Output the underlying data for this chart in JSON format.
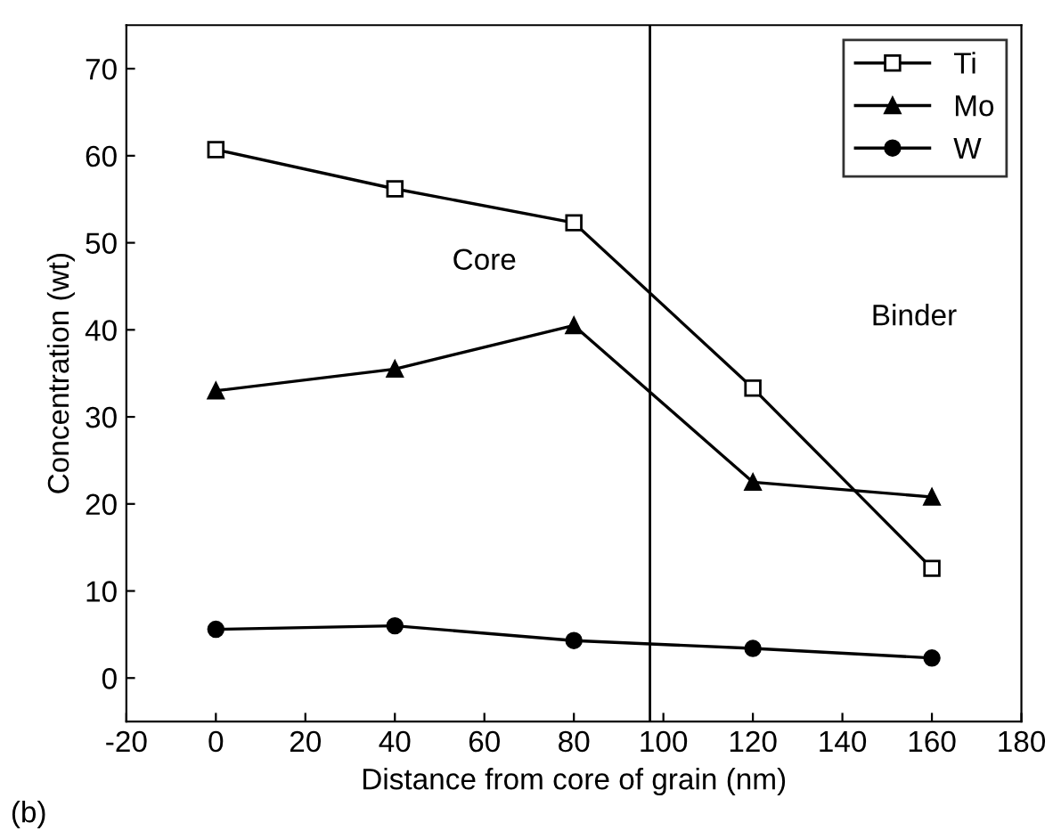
{
  "chart_data": {
    "type": "line",
    "xlabel": "Distance from core of grain (nm)",
    "ylabel": "Concentration (wt)",
    "x": [
      0,
      40,
      80,
      120,
      160
    ],
    "series": [
      {
        "name": "Ti",
        "color": "#000000",
        "marker": "square",
        "values": [
          60.7,
          56.2,
          52.3,
          33.3,
          12.6
        ]
      },
      {
        "name": "Mo",
        "color": "#000000",
        "marker": "triangle",
        "values": [
          33.0,
          35.5,
          40.5,
          22.5,
          20.8
        ]
      },
      {
        "name": "W",
        "color": "#000000",
        "marker": "circle",
        "values": [
          5.6,
          6.0,
          4.3,
          3.4,
          2.3
        ]
      }
    ],
    "xlim": [
      -20,
      180
    ],
    "xticks": [
      -20,
      0,
      20,
      40,
      60,
      80,
      100,
      120,
      140,
      160,
      180
    ],
    "ylim": [
      -5,
      75
    ],
    "yticks": [
      0,
      10,
      20,
      30,
      40,
      50,
      60,
      70
    ],
    "ref_lines": [
      {
        "axis": "x",
        "value": 97,
        "color": "#000000"
      }
    ],
    "annotations": [
      "Core",
      "Binder",
      "(b)"
    ],
    "legend": "top right",
    "grid": false,
    "line_style": "solid"
  }
}
